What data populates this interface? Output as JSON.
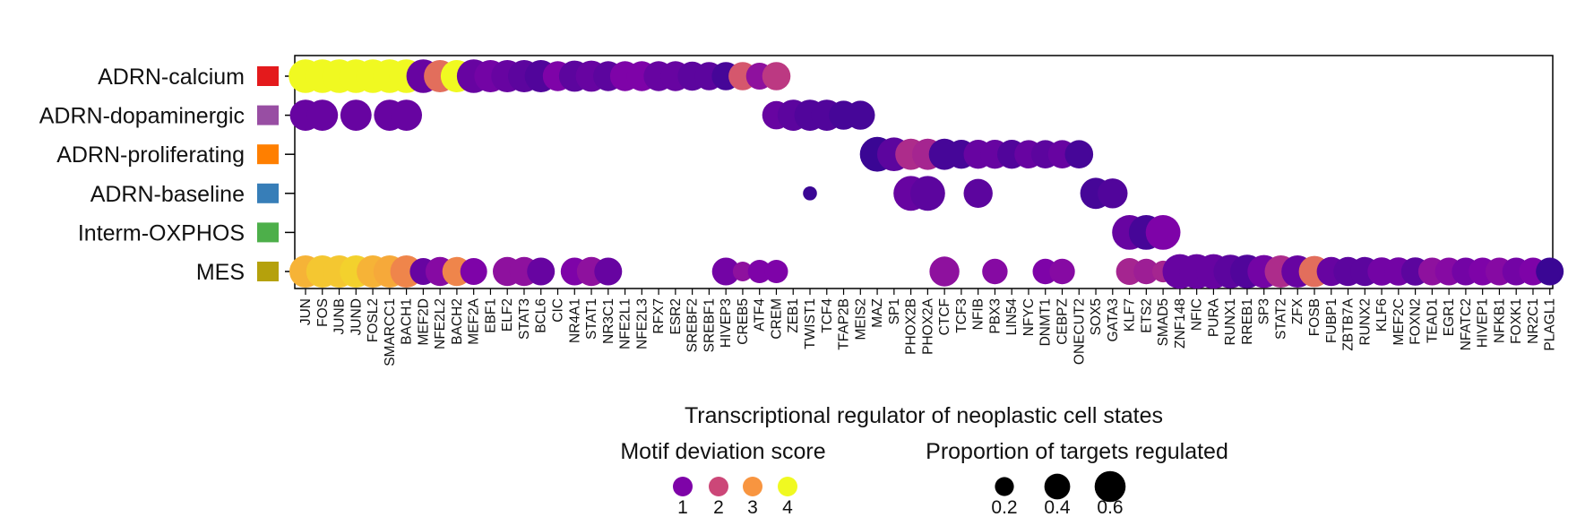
{
  "chart_data": {
    "type": "scatter",
    "subtype": "dot-plot",
    "xlabel": "Transcriptional regulator of neoplastic cell states",
    "categories": [
      "JUN",
      "FOS",
      "JUNB",
      "JUND",
      "FOSL2",
      "SMARCC1",
      "BACH1",
      "MEF2D",
      "NFE2L2",
      "BACH2",
      "MEF2A",
      "EBF1",
      "ELF2",
      "STAT3",
      "BCL6",
      "CIC",
      "NR4A1",
      "STAT1",
      "NR3C1",
      "NFE2L1",
      "NFE2L3",
      "RFX7",
      "ESR2",
      "SREBF2",
      "SREBF1",
      "HIVEP3",
      "CREB5",
      "ATF4",
      "CREM",
      "ZEB1",
      "TWIST1",
      "TCF4",
      "TFAP2B",
      "MEIS2",
      "MAZ",
      "SP1",
      "PHOX2B",
      "PHOX2A",
      "CTCF",
      "TCF3",
      "NFIB",
      "PBX3",
      "LIN54",
      "NFYC",
      "DNMT1",
      "CEBPZ",
      "ONECUT2",
      "SOX5",
      "GATA3",
      "KLF7",
      "ETS2",
      "SMAD5",
      "ZNF148",
      "NFIC",
      "PURA",
      "RUNX1",
      "RREB1",
      "SP3",
      "STAT2",
      "ZFX",
      "FOSB",
      "FUBP1",
      "ZBTB7A",
      "RUNX2",
      "KLF6",
      "MEF2C",
      "FOXN2",
      "TEAD1",
      "EGR1",
      "NFATC2",
      "HIVEP1",
      "NFKB1",
      "FOXK1",
      "NR2C1",
      "PLAGL1"
    ],
    "rows": [
      {
        "name": "ADRN-calcium",
        "color": "#e41a1c"
      },
      {
        "name": "ADRN-dopaminergic",
        "color": "#984ea3"
      },
      {
        "name": "ADRN-proliferating",
        "color": "#ff7f00"
      },
      {
        "name": "ADRN-baseline",
        "color": "#377eb8"
      },
      {
        "name": "Interm-OXPHOS",
        "color": "#4daf4a"
      },
      {
        "name": "MES",
        "color": "#b5a10c"
      }
    ],
    "points": [
      {
        "row": 0,
        "x": "JUN",
        "score": 4.0,
        "prop": 0.42
      },
      {
        "row": 0,
        "x": "FOS",
        "score": 4.0,
        "prop": 0.42
      },
      {
        "row": 0,
        "x": "JUNB",
        "score": 4.0,
        "prop": 0.42
      },
      {
        "row": 0,
        "x": "JUND",
        "score": 4.0,
        "prop": 0.42
      },
      {
        "row": 0,
        "x": "FOSL2",
        "score": 4.0,
        "prop": 0.42
      },
      {
        "row": 0,
        "x": "SMARCC1",
        "score": 4.0,
        "prop": 0.42
      },
      {
        "row": 0,
        "x": "BACH1",
        "score": 4.0,
        "prop": 0.42
      },
      {
        "row": 0,
        "x": "MEF2D",
        "score": 0.8,
        "prop": 0.42
      },
      {
        "row": 0,
        "x": "NFE2L2",
        "score": 2.5,
        "prop": 0.38
      },
      {
        "row": 0,
        "x": "BACH2",
        "score": 4.0,
        "prop": 0.38
      },
      {
        "row": 0,
        "x": "MEF2A",
        "score": 0.8,
        "prop": 0.42
      },
      {
        "row": 0,
        "x": "EBF1",
        "score": 0.9,
        "prop": 0.38
      },
      {
        "row": 0,
        "x": "ELF2",
        "score": 0.8,
        "prop": 0.38
      },
      {
        "row": 0,
        "x": "STAT3",
        "score": 0.7,
        "prop": 0.38
      },
      {
        "row": 0,
        "x": "BCL6",
        "score": 0.6,
        "prop": 0.38
      },
      {
        "row": 0,
        "x": "CIC",
        "score": 1.0,
        "prop": 0.32
      },
      {
        "row": 0,
        "x": "NR4A1",
        "score": 0.7,
        "prop": 0.35
      },
      {
        "row": 0,
        "x": "STAT1",
        "score": 0.8,
        "prop": 0.35
      },
      {
        "row": 0,
        "x": "NR3C1",
        "score": 0.7,
        "prop": 0.32
      },
      {
        "row": 0,
        "x": "NFE2L1",
        "score": 1.0,
        "prop": 0.32
      },
      {
        "row": 0,
        "x": "NFE2L3",
        "score": 1.0,
        "prop": 0.32
      },
      {
        "row": 0,
        "x": "RFX7",
        "score": 0.8,
        "prop": 0.32
      },
      {
        "row": 0,
        "x": "ESR2",
        "score": 0.8,
        "prop": 0.32
      },
      {
        "row": 0,
        "x": "SREBF2",
        "score": 0.7,
        "prop": 0.3
      },
      {
        "row": 0,
        "x": "SREBF1",
        "score": 0.7,
        "prop": 0.28
      },
      {
        "row": 0,
        "x": "HIVEP3",
        "score": 0.5,
        "prop": 0.28
      },
      {
        "row": 0,
        "x": "CREB5",
        "score": 2.2,
        "prop": 0.28
      },
      {
        "row": 0,
        "x": "ATF4",
        "score": 1.2,
        "prop": 0.25
      },
      {
        "row": 0,
        "x": "CREM",
        "score": 1.8,
        "prop": 0.28
      },
      {
        "row": 1,
        "x": "JUN",
        "score": 0.8,
        "prop": 0.35
      },
      {
        "row": 1,
        "x": "FOS",
        "score": 0.8,
        "prop": 0.35
      },
      {
        "row": 1,
        "x": "JUND",
        "score": 0.8,
        "prop": 0.35
      },
      {
        "row": 1,
        "x": "SMARCC1",
        "score": 0.8,
        "prop": 0.35
      },
      {
        "row": 1,
        "x": "BACH1",
        "score": 0.8,
        "prop": 0.35
      },
      {
        "row": 1,
        "x": "CREM",
        "score": 0.8,
        "prop": 0.28
      },
      {
        "row": 1,
        "x": "ZEB1",
        "score": 0.7,
        "prop": 0.35
      },
      {
        "row": 1,
        "x": "TWIST1",
        "score": 0.6,
        "prop": 0.35
      },
      {
        "row": 1,
        "x": "TCF4",
        "score": 0.6,
        "prop": 0.35
      },
      {
        "row": 1,
        "x": "TFAP2B",
        "score": 0.5,
        "prop": 0.3
      },
      {
        "row": 1,
        "x": "MEIS2",
        "score": 0.5,
        "prop": 0.3
      },
      {
        "row": 2,
        "x": "MAZ",
        "score": 0.4,
        "prop": 0.45
      },
      {
        "row": 2,
        "x": "SP1",
        "score": 0.7,
        "prop": 0.42
      },
      {
        "row": 2,
        "x": "PHOX2B",
        "score": 1.6,
        "prop": 0.35
      },
      {
        "row": 2,
        "x": "PHOX2A",
        "score": 1.5,
        "prop": 0.35
      },
      {
        "row": 2,
        "x": "CTCF",
        "score": 0.5,
        "prop": 0.35
      },
      {
        "row": 2,
        "x": "TCF3",
        "score": 0.5,
        "prop": 0.3
      },
      {
        "row": 2,
        "x": "NFIB",
        "score": 0.8,
        "prop": 0.3
      },
      {
        "row": 2,
        "x": "PBX3",
        "score": 0.8,
        "prop": 0.3
      },
      {
        "row": 2,
        "x": "LIN54",
        "score": 0.6,
        "prop": 0.3
      },
      {
        "row": 2,
        "x": "NFYC",
        "score": 0.8,
        "prop": 0.28
      },
      {
        "row": 2,
        "x": "DNMT1",
        "score": 0.7,
        "prop": 0.28
      },
      {
        "row": 2,
        "x": "CEBPZ",
        "score": 0.8,
        "prop": 0.28
      },
      {
        "row": 2,
        "x": "ONECUT2",
        "score": 0.5,
        "prop": 0.28
      },
      {
        "row": 3,
        "x": "TWIST1",
        "score": 0.4,
        "prop": 0.05
      },
      {
        "row": 3,
        "x": "PHOX2B",
        "score": 0.8,
        "prop": 0.45
      },
      {
        "row": 3,
        "x": "PHOX2A",
        "score": 0.7,
        "prop": 0.45
      },
      {
        "row": 3,
        "x": "NFIB",
        "score": 0.7,
        "prop": 0.3
      },
      {
        "row": 3,
        "x": "SOX5",
        "score": 0.5,
        "prop": 0.35
      },
      {
        "row": 3,
        "x": "GATA3",
        "score": 0.6,
        "prop": 0.32
      },
      {
        "row": 4,
        "x": "KLF7",
        "score": 0.8,
        "prop": 0.45
      },
      {
        "row": 4,
        "x": "ETS2",
        "score": 0.5,
        "prop": 0.45
      },
      {
        "row": 4,
        "x": "SMAD5",
        "score": 1.0,
        "prop": 0.45
      },
      {
        "row": 5,
        "x": "JUN",
        "score": 3.3,
        "prop": 0.38
      },
      {
        "row": 5,
        "x": "FOS",
        "score": 3.5,
        "prop": 0.38
      },
      {
        "row": 5,
        "x": "JUNB",
        "score": 3.5,
        "prop": 0.38
      },
      {
        "row": 5,
        "x": "JUND",
        "score": 3.6,
        "prop": 0.38
      },
      {
        "row": 5,
        "x": "FOSL2",
        "score": 3.3,
        "prop": 0.38
      },
      {
        "row": 5,
        "x": "SMARCC1",
        "score": 3.2,
        "prop": 0.38
      },
      {
        "row": 5,
        "x": "BACH1",
        "score": 2.8,
        "prop": 0.38
      },
      {
        "row": 5,
        "x": "MEF2D",
        "score": 0.8,
        "prop": 0.25
      },
      {
        "row": 5,
        "x": "NFE2L2",
        "score": 1.1,
        "prop": 0.3
      },
      {
        "row": 5,
        "x": "BACH2",
        "score": 2.8,
        "prop": 0.3
      },
      {
        "row": 5,
        "x": "MEF2A",
        "score": 1.0,
        "prop": 0.25
      },
      {
        "row": 5,
        "x": "ELF2",
        "score": 1.2,
        "prop": 0.3
      },
      {
        "row": 5,
        "x": "STAT3",
        "score": 1.2,
        "prop": 0.3
      },
      {
        "row": 5,
        "x": "BCL6",
        "score": 0.8,
        "prop": 0.27
      },
      {
        "row": 5,
        "x": "NR4A1",
        "score": 1.0,
        "prop": 0.27
      },
      {
        "row": 5,
        "x": "STAT1",
        "score": 1.2,
        "prop": 0.3
      },
      {
        "row": 5,
        "x": "NR3C1",
        "score": 0.8,
        "prop": 0.27
      },
      {
        "row": 5,
        "x": "HIVEP3",
        "score": 0.9,
        "prop": 0.27
      },
      {
        "row": 5,
        "x": "CREB5",
        "score": 1.2,
        "prop": 0.12
      },
      {
        "row": 5,
        "x": "ATF4",
        "score": 1.0,
        "prop": 0.18
      },
      {
        "row": 5,
        "x": "CREM",
        "score": 1.0,
        "prop": 0.18
      },
      {
        "row": 5,
        "x": "CTCF",
        "score": 1.2,
        "prop": 0.32
      },
      {
        "row": 5,
        "x": "PBX3",
        "score": 1.1,
        "prop": 0.22
      },
      {
        "row": 5,
        "x": "DNMT1",
        "score": 1.0,
        "prop": 0.22
      },
      {
        "row": 5,
        "x": "CEBPZ",
        "score": 1.1,
        "prop": 0.22
      },
      {
        "row": 5,
        "x": "KLF7",
        "score": 1.5,
        "prop": 0.25
      },
      {
        "row": 5,
        "x": "ETS2",
        "score": 1.4,
        "prop": 0.22
      },
      {
        "row": 5,
        "x": "SMAD5",
        "score": 1.5,
        "prop": 0.15
      },
      {
        "row": 5,
        "x": "ZNF148",
        "score": 0.8,
        "prop": 0.45
      },
      {
        "row": 5,
        "x": "NFIC",
        "score": 0.8,
        "prop": 0.45
      },
      {
        "row": 5,
        "x": "PURA",
        "score": 0.8,
        "prop": 0.45
      },
      {
        "row": 5,
        "x": "RUNX1",
        "score": 0.7,
        "prop": 0.42
      },
      {
        "row": 5,
        "x": "RREB1",
        "score": 0.6,
        "prop": 0.42
      },
      {
        "row": 5,
        "x": "SP3",
        "score": 0.9,
        "prop": 0.4
      },
      {
        "row": 5,
        "x": "STAT2",
        "score": 1.6,
        "prop": 0.38
      },
      {
        "row": 5,
        "x": "ZFX",
        "score": 0.8,
        "prop": 0.38
      },
      {
        "row": 5,
        "x": "FOSB",
        "score": 2.5,
        "prop": 0.35
      },
      {
        "row": 5,
        "x": "FUBP1",
        "score": 0.8,
        "prop": 0.3
      },
      {
        "row": 5,
        "x": "ZBTB7A",
        "score": 0.7,
        "prop": 0.3
      },
      {
        "row": 5,
        "x": "RUNX2",
        "score": 0.7,
        "prop": 0.3
      },
      {
        "row": 5,
        "x": "KLF6",
        "score": 0.9,
        "prop": 0.28
      },
      {
        "row": 5,
        "x": "MEF2C",
        "score": 0.9,
        "prop": 0.28
      },
      {
        "row": 5,
        "x": "FOXN2",
        "score": 0.7,
        "prop": 0.28
      },
      {
        "row": 5,
        "x": "TEAD1",
        "score": 1.2,
        "prop": 0.27
      },
      {
        "row": 5,
        "x": "EGR1",
        "score": 1.1,
        "prop": 0.27
      },
      {
        "row": 5,
        "x": "NFATC2",
        "score": 0.9,
        "prop": 0.27
      },
      {
        "row": 5,
        "x": "HIVEP1",
        "score": 1.0,
        "prop": 0.27
      },
      {
        "row": 5,
        "x": "NFKB1",
        "score": 1.1,
        "prop": 0.27
      },
      {
        "row": 5,
        "x": "FOXK1",
        "score": 0.9,
        "prop": 0.27
      },
      {
        "row": 5,
        "x": "NR2C1",
        "score": 1.0,
        "prop": 0.27
      },
      {
        "row": 5,
        "x": "PLAGL1",
        "score": 0.4,
        "prop": 0.27
      }
    ],
    "color_legend": {
      "title": "Motif deviation score",
      "values": [
        1,
        2,
        3,
        4
      ],
      "labels": [
        "1",
        "2",
        "3",
        "4"
      ]
    },
    "size_legend": {
      "title": "Proportion of targets regulated",
      "values": [
        0.2,
        0.4,
        0.6
      ],
      "labels": [
        "0.2",
        "0.4",
        "0.6"
      ]
    },
    "colormap": [
      "#0d0887",
      "#7e03a8",
      "#cc4778",
      "#f89540",
      "#f0f921"
    ],
    "grid": false
  }
}
